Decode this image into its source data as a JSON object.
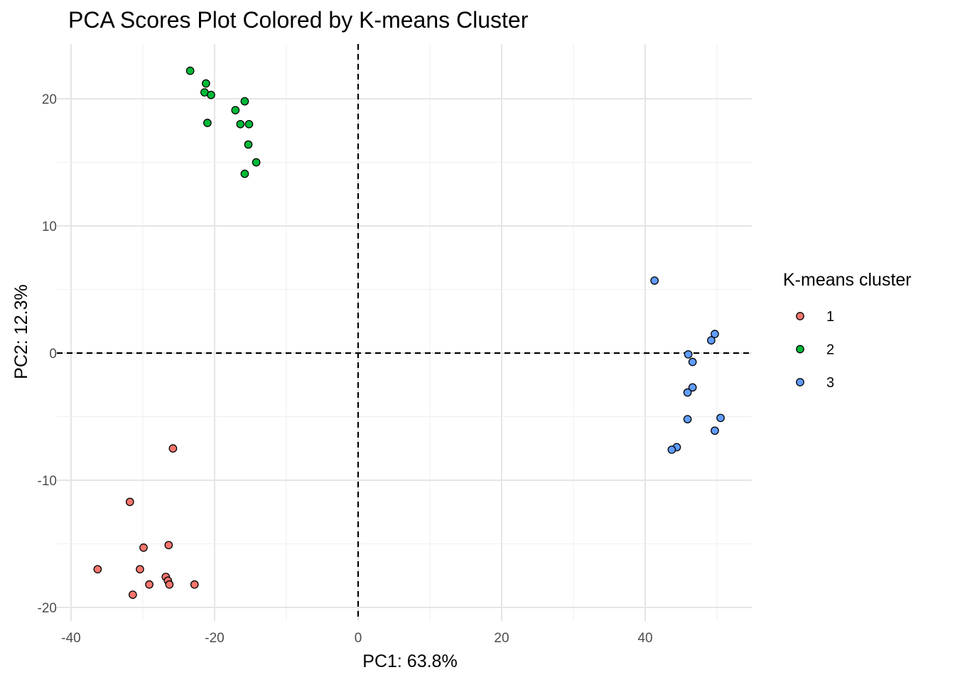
{
  "chart_data": {
    "type": "scatter",
    "title": "PCA Scores Plot Colored by K-means Cluster",
    "xlabel": "PC1: 63.8%",
    "ylabel": "PC2: 12.3%",
    "xlim": [
      -40,
      55
    ],
    "ylim": [
      -21,
      24
    ],
    "x_ticks": [
      -40,
      -20,
      0,
      20,
      40
    ],
    "y_ticks": [
      -20,
      -10,
      0,
      10,
      20
    ],
    "x_tick_labels": [
      "-40",
      "-20",
      "0",
      "20",
      "40"
    ],
    "y_tick_labels": [
      "-20",
      "-10",
      "0",
      "10",
      "20"
    ],
    "grid": true,
    "reference_lines": {
      "x": 0,
      "y": 0,
      "style": "dashed"
    },
    "legend": {
      "title": "K-means cluster",
      "position": "right"
    },
    "series": [
      {
        "name": "1",
        "color": "#F8766D",
        "points": [
          [
            -25.8,
            -7.5
          ],
          [
            -31.8,
            -11.7
          ],
          [
            -26.4,
            -15.1
          ],
          [
            -29.9,
            -15.3
          ],
          [
            -36.3,
            -17.0
          ],
          [
            -30.4,
            -17.0
          ],
          [
            -26.8,
            -17.6
          ],
          [
            -26.5,
            -17.9
          ],
          [
            -26.3,
            -18.2
          ],
          [
            -29.1,
            -18.2
          ],
          [
            -22.8,
            -18.2
          ],
          [
            -31.4,
            -19.0
          ]
        ]
      },
      {
        "name": "2",
        "color": "#00BA38",
        "points": [
          [
            -23.4,
            22.2
          ],
          [
            -21.2,
            21.2
          ],
          [
            -21.4,
            20.5
          ],
          [
            -20.5,
            20.3
          ],
          [
            -15.8,
            19.8
          ],
          [
            -17.1,
            19.1
          ],
          [
            -21.0,
            18.1
          ],
          [
            -16.4,
            18.0
          ],
          [
            -15.2,
            18.0
          ],
          [
            -15.3,
            16.4
          ],
          [
            -14.2,
            15.0
          ],
          [
            -15.8,
            14.1
          ]
        ]
      },
      {
        "name": "3",
        "color": "#619CFF",
        "points": [
          [
            41.3,
            5.7
          ],
          [
            49.7,
            1.5
          ],
          [
            49.2,
            1.0
          ],
          [
            46.0,
            -0.1
          ],
          [
            46.6,
            -0.7
          ],
          [
            46.6,
            -2.7
          ],
          [
            45.9,
            -3.1
          ],
          [
            50.5,
            -5.1
          ],
          [
            45.9,
            -5.2
          ],
          [
            49.7,
            -6.1
          ],
          [
            44.4,
            -7.4
          ],
          [
            43.7,
            -7.6
          ]
        ]
      }
    ]
  }
}
